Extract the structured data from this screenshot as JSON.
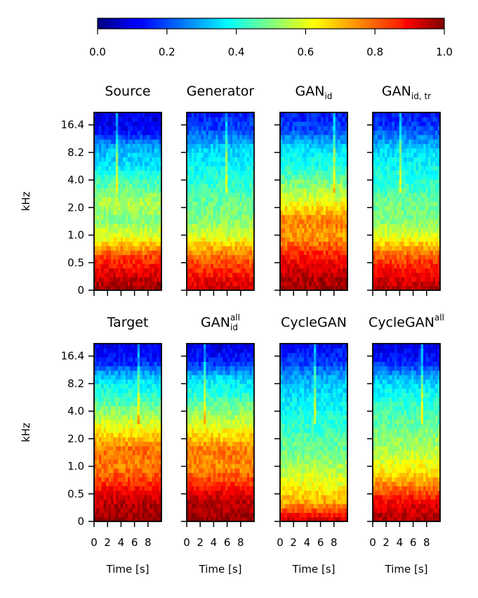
{
  "chart_data": {
    "type": "heatmap",
    "colormap": "jet",
    "colorbar": {
      "min": 0.0,
      "max": 1.0,
      "ticks": [
        "0.0",
        "0.2",
        "0.4",
        "0.6",
        "0.8",
        "1.0"
      ]
    },
    "y_axis": {
      "label": "kHz",
      "ticks": [
        "0",
        "0.5",
        "1.0",
        "2.0",
        "4.0",
        "8.2",
        "16.4"
      ]
    },
    "x_axis": {
      "label": "Time [s]",
      "ticks": [
        "0",
        "2",
        "4",
        "6",
        "8"
      ],
      "range": [
        0,
        10
      ]
    },
    "panels": [
      {
        "base": "Source",
        "sub": "",
        "sup": "",
        "profile": [
          0.98,
          0.9,
          0.8,
          0.6,
          0.5,
          0.55,
          0.45,
          0.35,
          0.3,
          0.12,
          0.1
        ]
      },
      {
        "base": "Generator",
        "sub": "",
        "sup": "",
        "profile": [
          0.93,
          0.85,
          0.76,
          0.6,
          0.5,
          0.48,
          0.42,
          0.38,
          0.33,
          0.2,
          0.14
        ]
      },
      {
        "base": "GAN",
        "sub": "id",
        "sup": "",
        "profile": [
          0.98,
          0.93,
          0.85,
          0.72,
          0.75,
          0.6,
          0.5,
          0.4,
          0.35,
          0.2,
          0.14
        ]
      },
      {
        "base": "GAN",
        "sub": "id, tr",
        "sup": "",
        "profile": [
          0.96,
          0.88,
          0.78,
          0.6,
          0.5,
          0.48,
          0.42,
          0.38,
          0.33,
          0.2,
          0.14
        ]
      },
      {
        "base": "Target",
        "sub": "",
        "sup": "",
        "profile": [
          0.98,
          0.95,
          0.85,
          0.75,
          0.77,
          0.65,
          0.53,
          0.43,
          0.35,
          0.15,
          0.1
        ]
      },
      {
        "base": "GAN",
        "sub": "id",
        "sup": "all",
        "profile": [
          0.98,
          0.95,
          0.85,
          0.74,
          0.76,
          0.64,
          0.53,
          0.43,
          0.35,
          0.15,
          0.1
        ]
      },
      {
        "base": "CycleGAN",
        "sub": "",
        "sup": "",
        "profile": [
          0.95,
          0.72,
          0.62,
          0.55,
          0.48,
          0.44,
          0.4,
          0.36,
          0.3,
          0.18,
          0.12
        ]
      },
      {
        "base": "CycleGAN",
        "sub": "",
        "sup": "all",
        "profile": [
          0.96,
          0.9,
          0.75,
          0.62,
          0.55,
          0.5,
          0.45,
          0.4,
          0.32,
          0.15,
          0.1
        ]
      }
    ]
  }
}
